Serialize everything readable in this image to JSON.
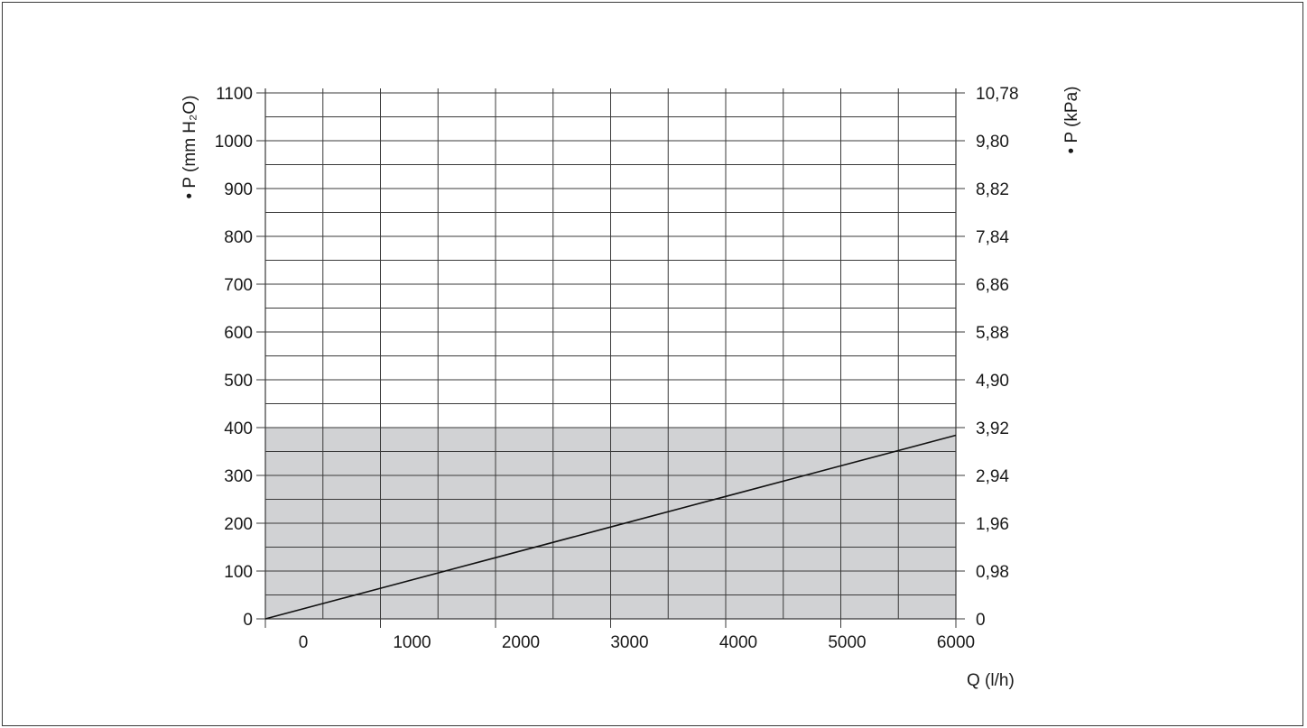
{
  "chart_data": {
    "type": "line",
    "xlabel": "Q (l/h)",
    "ylabel_left": "• P (mm H₂O)",
    "ylabel_right": "• P (kPa)",
    "x_ticks": [
      "0",
      "1000",
      "2000",
      "3000",
      "4000",
      "5000",
      "6000"
    ],
    "y_ticks_left": [
      "0",
      "100",
      "200",
      "300",
      "400",
      "500",
      "600",
      "700",
      "800",
      "900",
      "1000",
      "1100"
    ],
    "y_ticks_right": [
      "0",
      "0,98",
      "1,96",
      "2,94",
      "3,92",
      "4,90",
      "5,88",
      "6,86",
      "7,84",
      "8,82",
      "9,80",
      "10,78"
    ],
    "xlim": [
      0,
      6000
    ],
    "ylim": [
      0,
      1100
    ],
    "grid": true,
    "shaded_region": {
      "y_from": 0,
      "y_to": 400
    },
    "series": [
      {
        "x": [
          0,
          1000,
          2000,
          3000,
          4000,
          5000,
          6000
        ],
        "y": [
          0,
          64,
          128,
          192,
          256,
          320,
          384
        ]
      }
    ]
  },
  "colors": {
    "shade": "#d1d2d4",
    "grid": "#3a3a3a",
    "line": "#111111"
  }
}
